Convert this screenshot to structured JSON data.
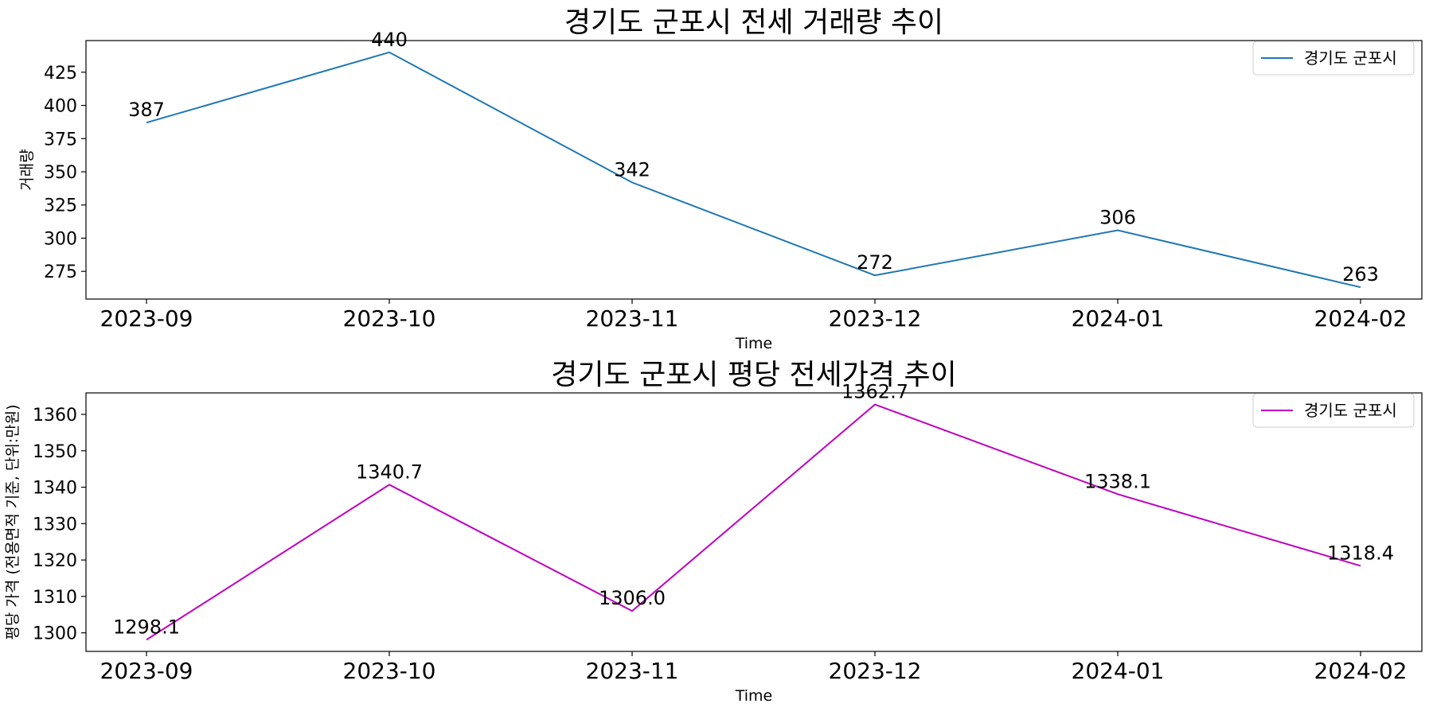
{
  "chart_data": [
    {
      "type": "line",
      "title": "경기도 군포시 전세 거래량 추이",
      "xlabel": "Time",
      "ylabel": "거래량",
      "categories": [
        "2023-09",
        "2023-10",
        "2023-11",
        "2023-12",
        "2024-01",
        "2024-02"
      ],
      "series": [
        {
          "name": "경기도 군포시",
          "color": "#1f77b4",
          "values": [
            387,
            440,
            342,
            272,
            306,
            263
          ]
        }
      ],
      "value_labels": [
        "387",
        "440",
        "342",
        "272",
        "306",
        "263"
      ],
      "yticks": [
        275,
        300,
        325,
        350,
        375,
        400,
        425
      ],
      "ylim": [
        254.15,
        448.85
      ],
      "legend": "top-right",
      "grid": false
    },
    {
      "type": "line",
      "title": "경기도 군포시 평당 전세가격 추이",
      "xlabel": "Time",
      "ylabel": "평당 가격 (전용면적 기준, 단위:만원)",
      "categories": [
        "2023-09",
        "2023-10",
        "2023-11",
        "2023-12",
        "2024-01",
        "2024-02"
      ],
      "series": [
        {
          "name": "경기도 군포시",
          "color": "#bf00bf",
          "values": [
            1298.1,
            1340.7,
            1306.0,
            1362.7,
            1338.1,
            1318.4
          ]
        }
      ],
      "value_labels": [
        "1298.1",
        "1340.7",
        "1306.0",
        "1362.7",
        "1338.1",
        "1318.4"
      ],
      "yticks": [
        1300,
        1310,
        1320,
        1330,
        1340,
        1350,
        1360
      ],
      "ylim": [
        1294.9,
        1365.9
      ],
      "legend": "top-right",
      "grid": false
    }
  ]
}
